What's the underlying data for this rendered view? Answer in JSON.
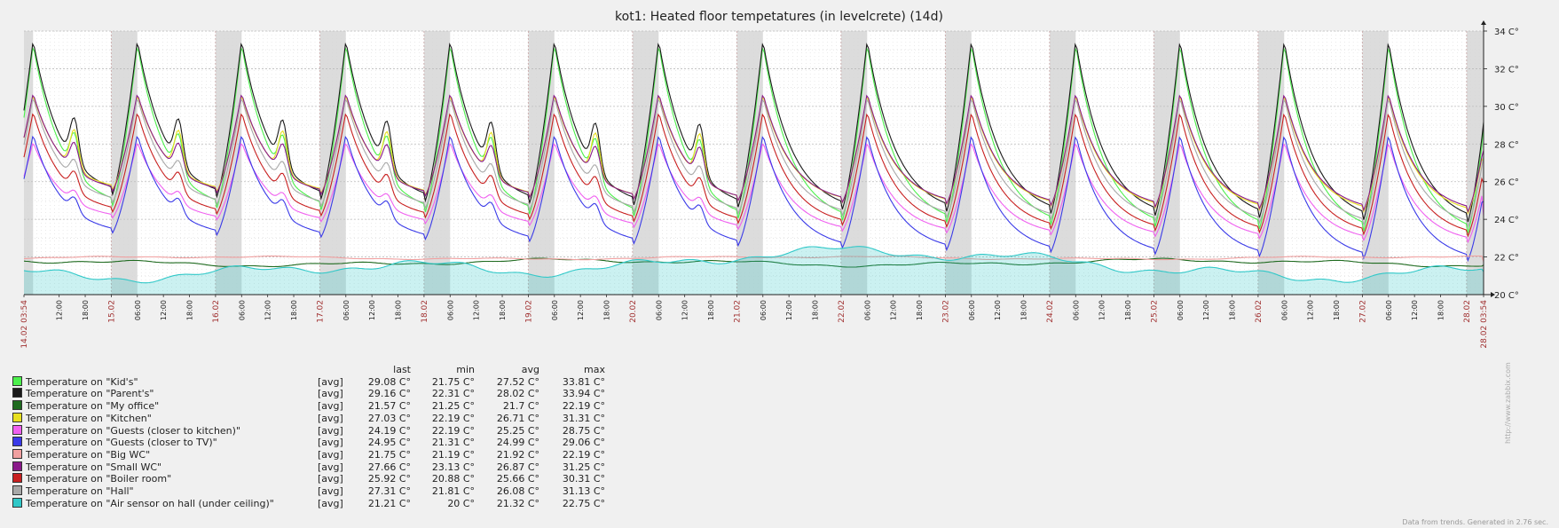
{
  "chart_data": {
    "type": "line",
    "title": "kot1: Heated floor tempetatures (in levelcrete) (14d)",
    "ylim": [
      20,
      34
    ],
    "y_ticks": [
      "34 C°",
      "32 C°",
      "30 C°",
      "28 C°",
      "26 C°",
      "24 C°",
      "22 C°",
      "20 C°"
    ],
    "x_labels": [
      {
        "label": "14.02 03:54",
        "kind": "date"
      },
      {
        "label": "12:00",
        "kind": "time"
      },
      {
        "label": "18:00",
        "kind": "time"
      },
      {
        "label": "15.02",
        "kind": "date"
      },
      {
        "label": "06:00",
        "kind": "time"
      },
      {
        "label": "12:00",
        "kind": "time"
      },
      {
        "label": "18:00",
        "kind": "time"
      },
      {
        "label": "16.02",
        "kind": "date"
      },
      {
        "label": "06:00",
        "kind": "time"
      },
      {
        "label": "12:00",
        "kind": "time"
      },
      {
        "label": "18:00",
        "kind": "time"
      },
      {
        "label": "17.02",
        "kind": "date"
      },
      {
        "label": "06:00",
        "kind": "time"
      },
      {
        "label": "12:00",
        "kind": "time"
      },
      {
        "label": "18:00",
        "kind": "time"
      },
      {
        "label": "18.02",
        "kind": "date"
      },
      {
        "label": "06:00",
        "kind": "time"
      },
      {
        "label": "12:00",
        "kind": "time"
      },
      {
        "label": "18:00",
        "kind": "time"
      },
      {
        "label": "19.02",
        "kind": "date"
      },
      {
        "label": "06:00",
        "kind": "time"
      },
      {
        "label": "12:00",
        "kind": "time"
      },
      {
        "label": "18:00",
        "kind": "time"
      },
      {
        "label": "20.02",
        "kind": "date"
      },
      {
        "label": "06:00",
        "kind": "time"
      },
      {
        "label": "12:00",
        "kind": "time"
      },
      {
        "label": "18:00",
        "kind": "time"
      },
      {
        "label": "21.02",
        "kind": "date"
      },
      {
        "label": "06:00",
        "kind": "time"
      },
      {
        "label": "12:00",
        "kind": "time"
      },
      {
        "label": "18:00",
        "kind": "time"
      },
      {
        "label": "22.02",
        "kind": "date"
      },
      {
        "label": "06:00",
        "kind": "time"
      },
      {
        "label": "12:00",
        "kind": "time"
      },
      {
        "label": "18:00",
        "kind": "time"
      },
      {
        "label": "23.02",
        "kind": "date"
      },
      {
        "label": "06:00",
        "kind": "time"
      },
      {
        "label": "12:00",
        "kind": "time"
      },
      {
        "label": "18:00",
        "kind": "time"
      },
      {
        "label": "24.02",
        "kind": "date"
      },
      {
        "label": "06:00",
        "kind": "time"
      },
      {
        "label": "12:00",
        "kind": "time"
      },
      {
        "label": "18:00",
        "kind": "time"
      },
      {
        "label": "25.02",
        "kind": "date"
      },
      {
        "label": "06:00",
        "kind": "time"
      },
      {
        "label": "12:00",
        "kind": "time"
      },
      {
        "label": "18:00",
        "kind": "time"
      },
      {
        "label": "26.02",
        "kind": "date"
      },
      {
        "label": "06:00",
        "kind": "time"
      },
      {
        "label": "12:00",
        "kind": "time"
      },
      {
        "label": "18:00",
        "kind": "time"
      },
      {
        "label": "27.02",
        "kind": "date"
      },
      {
        "label": "06:00",
        "kind": "time"
      },
      {
        "label": "12:00",
        "kind": "time"
      },
      {
        "label": "18:00",
        "kind": "time"
      },
      {
        "label": "28.02",
        "kind": "date"
      },
      {
        "label": "28.02 03:54",
        "kind": "date"
      }
    ],
    "series": [
      {
        "name": "Temperature on \"Kid's\"",
        "func": "[avg]",
        "color": "#4cf04c",
        "last": "29.08 C°",
        "min": "21.75 C°",
        "avg": "27.52 C°",
        "max": "33.81 C°",
        "peak": 33.3,
        "trough": 24.7,
        "drift": 0.8,
        "wiggle": 0.5,
        "last_value": 29.08
      },
      {
        "name": "Temperature on \"Parent's\"",
        "func": "[avg]",
        "color": "#1a1a1a",
        "last": "29.16 C°",
        "min": "22.31 C°",
        "avg": "28.02 C°",
        "max": "33.94 C°",
        "peak": 33.5,
        "trough": 25.3,
        "drift": 0.8,
        "wiggle": 0.6,
        "last_value": 29.16
      },
      {
        "name": "Temperature on \"My office\"",
        "func": "[avg]",
        "color": "#1f6a1f",
        "last": "21.57 C°",
        "min": "21.25 C°",
        "avg": "21.7 C°",
        "max": "22.19 C°",
        "flat": 21.7,
        "amp": 0.25,
        "last_value": 21.57
      },
      {
        "name": "Temperature on \"Kitchen\"",
        "func": "[avg]",
        "color": "#e8e020",
        "last": "27.03 C°",
        "min": "22.19 C°",
        "avg": "26.71 C°",
        "max": "31.31 C°",
        "peak": 30.6,
        "trough": 25.6,
        "drift": 0.7,
        "wiggle": 0.9,
        "last_value": 27.03
      },
      {
        "name": "Temperature on \"Guests (closer to kitchen)\"",
        "func": "[avg]",
        "color": "#f060f0",
        "last": "24.19 C°",
        "min": "22.19 C°",
        "avg": "25.25 C°",
        "max": "28.75 C°",
        "peak": 28.1,
        "trough": 24.1,
        "drift": 0.7,
        "wiggle": 0.3,
        "last_value": 24.19
      },
      {
        "name": "Temperature on \"Guests (closer to TV)\"",
        "func": "[avg]",
        "color": "#3a3ae8",
        "last": "24.95 C°",
        "min": "21.31 C°",
        "avg": "24.99 C°",
        "max": "29.06 C°",
        "peak": 28.5,
        "trough": 23.3,
        "drift": 0.8,
        "wiggle": 0.3,
        "last_value": 24.95
      },
      {
        "name": "Temperature on \"Big WC\"",
        "func": "[avg]",
        "color": "#f0a0a0",
        "last": "21.75 C°",
        "min": "21.19 C°",
        "avg": "21.92 C°",
        "max": "22.19 C°",
        "flat": 21.95,
        "amp": 0.12,
        "last_value": 21.75
      },
      {
        "name": "Temperature on \"Small WC\"",
        "func": "[avg]",
        "color": "#8a1a8a",
        "last": "27.66 C°",
        "min": "23.13 C°",
        "avg": "26.87 C°",
        "max": "31.25 C°",
        "peak": 30.7,
        "trough": 25.5,
        "drift": 0.6,
        "wiggle": 0.6,
        "last_value": 27.66
      },
      {
        "name": "Temperature on \"Boiler room\"",
        "func": "[avg]",
        "color": "#c82020",
        "last": "25.92 C°",
        "min": "20.88 C°",
        "avg": "25.66 C°",
        "max": "30.31 C°",
        "peak": 29.7,
        "trough": 24.4,
        "drift": 0.7,
        "wiggle": 0.4,
        "last_value": 25.92
      },
      {
        "name": "Temperature on \"Hall\"",
        "func": "[avg]",
        "color": "#a8a8a8",
        "last": "27.31 C°",
        "min": "21.81 C°",
        "avg": "26.08 C°",
        "max": "31.13 C°",
        "peak": 30.5,
        "trough": 24.9,
        "drift": 0.7,
        "wiggle": 0.4,
        "last_value": 27.31
      },
      {
        "name": "Temperature on \"Air sensor on hall (under ceiling)\"",
        "func": "[avg]",
        "color": "#30c8c8",
        "last": "21.21 C°",
        "min": "20 C°",
        "avg": "21.32 C°",
        "max": "22.75 C°",
        "flat": 21.3,
        "amp": 0.7,
        "filled": true,
        "last_value": 21.21
      }
    ]
  },
  "legend": {
    "headers": {
      "last": "last",
      "min": "min",
      "avg": "avg",
      "max": "max"
    }
  },
  "footer": {
    "note": "Data from trends. Generated in 2.76 sec.",
    "side": "http://www.zabbix.com"
  }
}
